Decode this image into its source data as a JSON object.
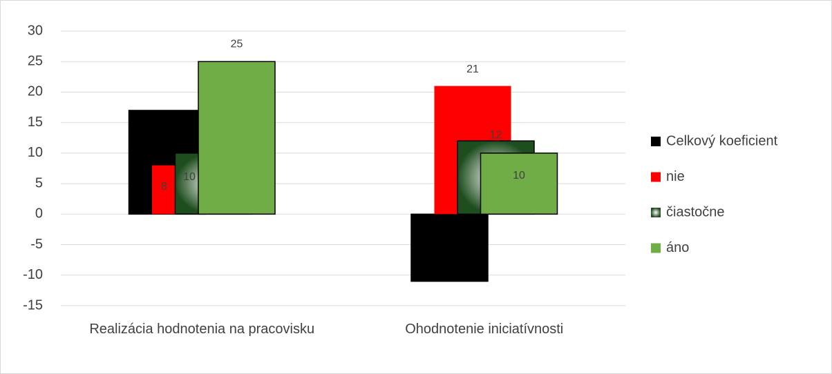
{
  "chart_data": {
    "type": "bar",
    "categories": [
      "Realizácia hodnotenia na pracovisku",
      "Ohodnotenie iniciatívnosti"
    ],
    "series": [
      {
        "name": "Celkový koeficient",
        "color": "#000000",
        "values": [
          17,
          -11
        ],
        "show_labels": false
      },
      {
        "name": "nie",
        "color": "#ff0000",
        "values": [
          8,
          21
        ],
        "show_labels": true
      },
      {
        "name": "čiastočne",
        "color": "#1e4d1e",
        "gradient": true,
        "values": [
          10,
          12
        ],
        "show_labels": true
      },
      {
        "name": "áno",
        "color": "#70ad47",
        "values": [
          25,
          10
        ],
        "show_labels": true
      }
    ],
    "ylim": [
      -15,
      30
    ],
    "yticks": [
      -15,
      -10,
      -5,
      0,
      5,
      10,
      15,
      20,
      25,
      30
    ],
    "grid": true,
    "legend": "right"
  }
}
